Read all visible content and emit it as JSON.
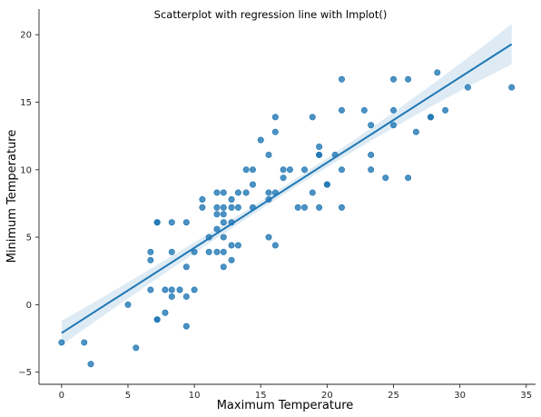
{
  "chart_data": {
    "type": "scatter",
    "title": "Scatterplot with regression line with lmplot()",
    "xlabel": "Maximum Temperature",
    "ylabel": "Minimum Temperature",
    "xlim": [
      -1.7,
      35.7
    ],
    "ylim": [
      -5.9,
      21.9
    ],
    "xticks": [
      0,
      5,
      10,
      15,
      20,
      25,
      30,
      35
    ],
    "yticks": [
      -5,
      0,
      5,
      10,
      15,
      20
    ],
    "grid": false,
    "legend": "none",
    "colors": {
      "points": "#1f77b4",
      "line": "#1f77b4",
      "ci_band": "#1f77b4",
      "axis": "#262626"
    },
    "regression": {
      "x": [
        0,
        33.9
      ],
      "y": [
        -2.1,
        19.3
      ],
      "ci_half_width_at_ends": [
        0.9,
        1.5
      ],
      "ci_half_width_at_center": 0.3
    },
    "points": [
      {
        "x": 0.0,
        "y": -2.8
      },
      {
        "x": 1.7,
        "y": -2.8
      },
      {
        "x": 2.2,
        "y": -4.4
      },
      {
        "x": 5.0,
        "y": 0.0
      },
      {
        "x": 5.6,
        "y": -3.2
      },
      {
        "x": 6.7,
        "y": 3.9
      },
      {
        "x": 6.7,
        "y": 3.3
      },
      {
        "x": 6.7,
        "y": 1.1
      },
      {
        "x": 7.2,
        "y": 6.1
      },
      {
        "x": 7.2,
        "y": 6.1
      },
      {
        "x": 7.2,
        "y": -1.1
      },
      {
        "x": 7.2,
        "y": -1.1
      },
      {
        "x": 7.8,
        "y": 1.1
      },
      {
        "x": 7.8,
        "y": -0.6
      },
      {
        "x": 8.3,
        "y": 6.1
      },
      {
        "x": 8.3,
        "y": 3.9
      },
      {
        "x": 8.3,
        "y": 1.1
      },
      {
        "x": 8.3,
        "y": 0.6
      },
      {
        "x": 8.9,
        "y": 1.1
      },
      {
        "x": 9.4,
        "y": 6.1
      },
      {
        "x": 9.4,
        "y": 2.8
      },
      {
        "x": 9.4,
        "y": 0.6
      },
      {
        "x": 9.4,
        "y": -1.6
      },
      {
        "x": 10.0,
        "y": 3.9
      },
      {
        "x": 10.0,
        "y": 1.1
      },
      {
        "x": 10.6,
        "y": 7.8
      },
      {
        "x": 10.6,
        "y": 7.2
      },
      {
        "x": 11.1,
        "y": 5.0
      },
      {
        "x": 11.1,
        "y": 3.9
      },
      {
        "x": 11.7,
        "y": 8.3
      },
      {
        "x": 11.7,
        "y": 7.2
      },
      {
        "x": 11.7,
        "y": 6.7
      },
      {
        "x": 11.7,
        "y": 5.6
      },
      {
        "x": 11.7,
        "y": 3.9
      },
      {
        "x": 12.2,
        "y": 8.3
      },
      {
        "x": 12.2,
        "y": 7.2
      },
      {
        "x": 12.2,
        "y": 6.7
      },
      {
        "x": 12.2,
        "y": 6.1
      },
      {
        "x": 12.2,
        "y": 5.0
      },
      {
        "x": 12.2,
        "y": 3.9
      },
      {
        "x": 12.2,
        "y": 2.8
      },
      {
        "x": 12.8,
        "y": 7.8
      },
      {
        "x": 12.8,
        "y": 7.2
      },
      {
        "x": 12.8,
        "y": 6.1
      },
      {
        "x": 12.8,
        "y": 4.4
      },
      {
        "x": 12.8,
        "y": 3.3
      },
      {
        "x": 13.3,
        "y": 8.3
      },
      {
        "x": 13.3,
        "y": 7.2
      },
      {
        "x": 13.3,
        "y": 4.4
      },
      {
        "x": 13.9,
        "y": 10.0
      },
      {
        "x": 13.9,
        "y": 8.3
      },
      {
        "x": 14.4,
        "y": 10.0
      },
      {
        "x": 14.4,
        "y": 8.9
      },
      {
        "x": 14.4,
        "y": 7.2
      },
      {
        "x": 15.0,
        "y": 12.2
      },
      {
        "x": 15.6,
        "y": 11.1
      },
      {
        "x": 15.6,
        "y": 8.3
      },
      {
        "x": 15.6,
        "y": 7.8
      },
      {
        "x": 15.6,
        "y": 5.0
      },
      {
        "x": 16.1,
        "y": 13.9
      },
      {
        "x": 16.1,
        "y": 12.8
      },
      {
        "x": 16.1,
        "y": 8.3
      },
      {
        "x": 16.1,
        "y": 4.4
      },
      {
        "x": 16.7,
        "y": 10.0
      },
      {
        "x": 16.7,
        "y": 9.4
      },
      {
        "x": 17.2,
        "y": 10.0
      },
      {
        "x": 17.8,
        "y": 7.2
      },
      {
        "x": 18.3,
        "y": 10.0
      },
      {
        "x": 18.3,
        "y": 7.2
      },
      {
        "x": 18.9,
        "y": 13.9
      },
      {
        "x": 18.9,
        "y": 8.3
      },
      {
        "x": 19.4,
        "y": 11.7
      },
      {
        "x": 19.4,
        "y": 11.1
      },
      {
        "x": 19.4,
        "y": 11.1
      },
      {
        "x": 19.4,
        "y": 7.2
      },
      {
        "x": 20.0,
        "y": 8.9
      },
      {
        "x": 20.0,
        "y": 8.9
      },
      {
        "x": 20.6,
        "y": 11.1
      },
      {
        "x": 21.1,
        "y": 16.7
      },
      {
        "x": 21.1,
        "y": 14.4
      },
      {
        "x": 21.1,
        "y": 10.0
      },
      {
        "x": 21.1,
        "y": 7.2
      },
      {
        "x": 22.8,
        "y": 14.4
      },
      {
        "x": 23.3,
        "y": 13.3
      },
      {
        "x": 23.3,
        "y": 11.1
      },
      {
        "x": 23.3,
        "y": 10.0
      },
      {
        "x": 24.4,
        "y": 9.4
      },
      {
        "x": 25.0,
        "y": 16.7
      },
      {
        "x": 25.0,
        "y": 14.4
      },
      {
        "x": 25.0,
        "y": 13.3
      },
      {
        "x": 26.1,
        "y": 16.7
      },
      {
        "x": 26.1,
        "y": 9.4
      },
      {
        "x": 26.7,
        "y": 12.8
      },
      {
        "x": 27.8,
        "y": 13.9
      },
      {
        "x": 27.8,
        "y": 13.9
      },
      {
        "x": 28.3,
        "y": 17.2
      },
      {
        "x": 28.9,
        "y": 14.4
      },
      {
        "x": 30.6,
        "y": 16.1
      },
      {
        "x": 33.9,
        "y": 16.1
      }
    ]
  }
}
